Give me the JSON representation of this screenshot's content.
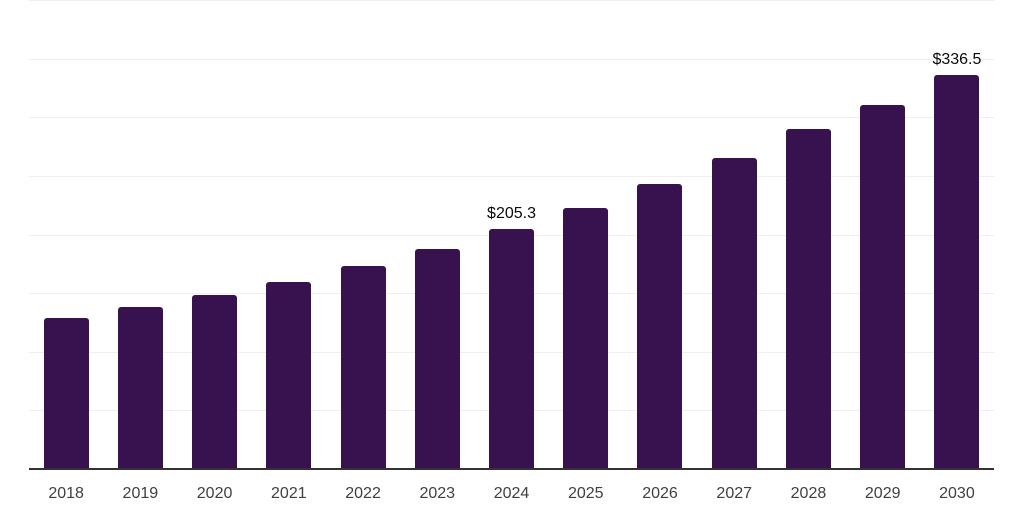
{
  "chart_data": {
    "type": "bar",
    "title": "",
    "xlabel": "",
    "ylabel": "",
    "categories": [
      "2018",
      "2019",
      "2020",
      "2021",
      "2022",
      "2023",
      "2024",
      "2025",
      "2026",
      "2027",
      "2028",
      "2029",
      "2030"
    ],
    "values": [
      129.5,
      138.8,
      149.1,
      160.1,
      173.8,
      188.2,
      205.3,
      223.2,
      243.6,
      265.8,
      290.5,
      311.7,
      336.5
    ],
    "value_labels": [
      "",
      "",
      "",
      "",
      "",
      "",
      "$205.3",
      "",
      "",
      "",
      "",
      "",
      "$336.5"
    ],
    "ylim": [
      0,
      400
    ],
    "gridline_step": 50,
    "grid": true,
    "legend": false,
    "bar_color": "#38124e",
    "grid_color": "#efefef",
    "axis_line_color": "#333333",
    "tick_label_color": "#404040",
    "value_label_color": "#0a0a0a"
  }
}
